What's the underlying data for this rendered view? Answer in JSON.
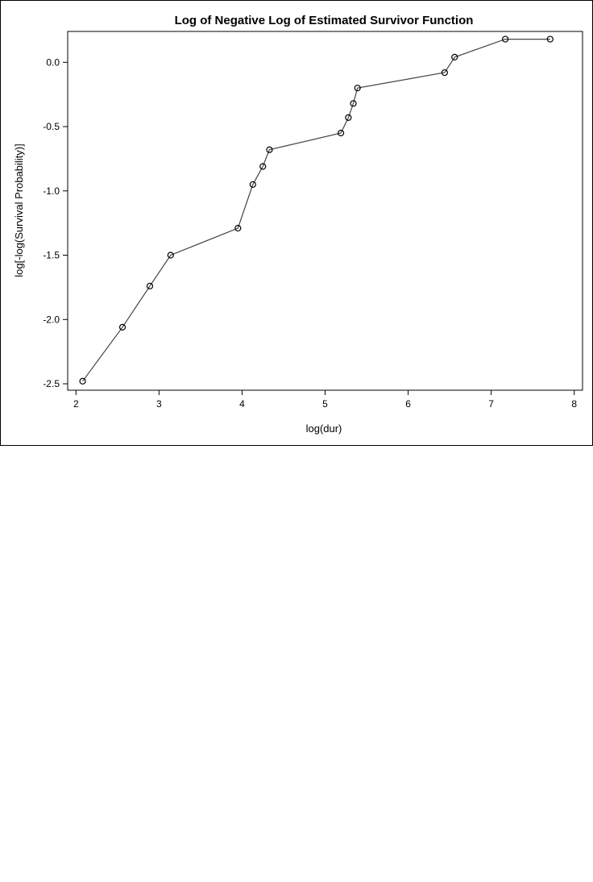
{
  "chart_data": {
    "type": "line",
    "title": "Log of Negative Log of Estimated Survivor Function",
    "xlabel": "log(dur)",
    "ylabel": "log[-log(Survival Probability)]",
    "xlim": [
      1.9,
      8.1
    ],
    "ylim": [
      -2.55,
      0.24
    ],
    "xticks": [
      2,
      3,
      4,
      5,
      6,
      7,
      8
    ],
    "xtick_labels": [
      "2",
      "3",
      "4",
      "5",
      "6",
      "7",
      "8"
    ],
    "yticks": [
      -2.5,
      -2.0,
      -1.5,
      -1.0,
      -0.5,
      0.0
    ],
    "ytick_labels": [
      "-2.5",
      "-2.0",
      "-1.5",
      "-1.0",
      "-0.5",
      "0.0"
    ],
    "grid": false,
    "series": [
      {
        "x": [
          2.08,
          2.56,
          2.89,
          3.14,
          3.95,
          4.13,
          4.25,
          4.33,
          5.19,
          5.28,
          5.34,
          5.39,
          6.44,
          6.56,
          7.17,
          7.71
        ],
        "y": [
          -2.48,
          -2.06,
          -1.74,
          -1.5,
          -1.29,
          -0.95,
          -0.81,
          -0.68,
          -0.55,
          -0.43,
          -0.32,
          -0.2,
          -0.08,
          0.04,
          0.18,
          0.18
        ]
      }
    ],
    "marker": "open-circle",
    "line_color": "#444444"
  }
}
